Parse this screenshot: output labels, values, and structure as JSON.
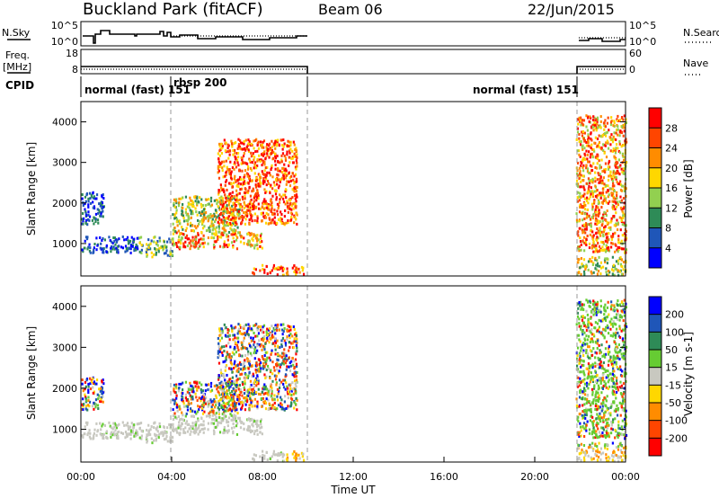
{
  "header": {
    "title": "Buckland Park (fitACF)",
    "beam": "Beam 06",
    "date": "22/Jun/2015"
  },
  "left_labels": {
    "nsky": "N.Sky",
    "freq_line1": "Freq.",
    "freq_line2": "[MHz]",
    "cpid": "CPID"
  },
  "right_labels": {
    "nsearch": "N.Search",
    "nave": "Nave"
  },
  "noise_axis": {
    "left_top": "10^5",
    "left_bottom": "10^0",
    "right_top": "10^5",
    "right_bottom": "10^0"
  },
  "freq_axis": {
    "left_top": "18",
    "left_bottom": "8",
    "right_top": "60",
    "right_bottom": "0"
  },
  "cpid_labels": {
    "a": "normal (fast) 151",
    "b": "rbsp 200",
    "c": "normal (fast) 151"
  },
  "colors": {
    "power_scale": [
      "#0000ff",
      "#1f56b8",
      "#2e8b57",
      "#92d050",
      "#ffd700",
      "#ff8c00",
      "#ff4500",
      "#ff0000"
    ],
    "velocity_scale": [
      "#ff0000",
      "#ff4500",
      "#ff8c00",
      "#ffd700",
      "#c8c8c0",
      "#66cc33",
      "#2e8b57",
      "#1f56b8",
      "#0000ff"
    ]
  },
  "chart_data": [
    {
      "type": "heatmap",
      "panel": "power",
      "ylabel": "Slant Range [km]",
      "xlabel": "",
      "xlim": [
        0,
        24
      ],
      "ylim": [
        200,
        4500
      ],
      "ytick_labels": [
        "1000",
        "2000",
        "3000",
        "4000"
      ],
      "colorbar": {
        "label": "Power [dB]",
        "ticks": [
          "4",
          "8",
          "12",
          "16",
          "20",
          "24",
          "28"
        ]
      },
      "scatter_regions": [
        {
          "x": [
            0.0,
            2.5
          ],
          "y": [
            800,
            1200
          ],
          "value": "low"
        },
        {
          "x": [
            0.0,
            1.0
          ],
          "y": [
            1500,
            2300
          ],
          "value": "low"
        },
        {
          "x": [
            2.5,
            4.0
          ],
          "y": [
            700,
            1200
          ],
          "value": "low-mid"
        },
        {
          "x": [
            4.0,
            8.0
          ],
          "y": [
            900,
            1300
          ],
          "value": "mid-high"
        },
        {
          "x": [
            4.0,
            7.0
          ],
          "y": [
            1300,
            2200
          ],
          "value": "mid"
        },
        {
          "x": [
            6.0,
            9.5
          ],
          "y": [
            1500,
            3600
          ],
          "value": "high"
        },
        {
          "x": [
            7.5,
            9.8
          ],
          "y": [
            250,
            500
          ],
          "value": "high"
        },
        {
          "x": [
            21.8,
            24.0
          ],
          "y": [
            800,
            4200
          ],
          "value": "mid-high"
        },
        {
          "x": [
            21.8,
            24.0
          ],
          "y": [
            250,
            700
          ],
          "value": "mid"
        }
      ]
    },
    {
      "type": "heatmap",
      "panel": "velocity",
      "ylabel": "Slant Range [km]",
      "xlabel": "Time UT",
      "xlim": [
        0,
        24
      ],
      "ylim": [
        200,
        4500
      ],
      "ytick_labels": [
        "1000",
        "2000",
        "3000",
        "4000"
      ],
      "xtick_labels": [
        "00:00",
        "04:00",
        "08:00",
        "12:00",
        "16:00",
        "20:00",
        "00:00"
      ],
      "colorbar": {
        "label": "Velocity [m s-1]",
        "ticks": [
          "200",
          "100",
          "50",
          "15",
          "-15",
          "-50",
          "-100",
          "-200"
        ]
      }
    }
  ]
}
